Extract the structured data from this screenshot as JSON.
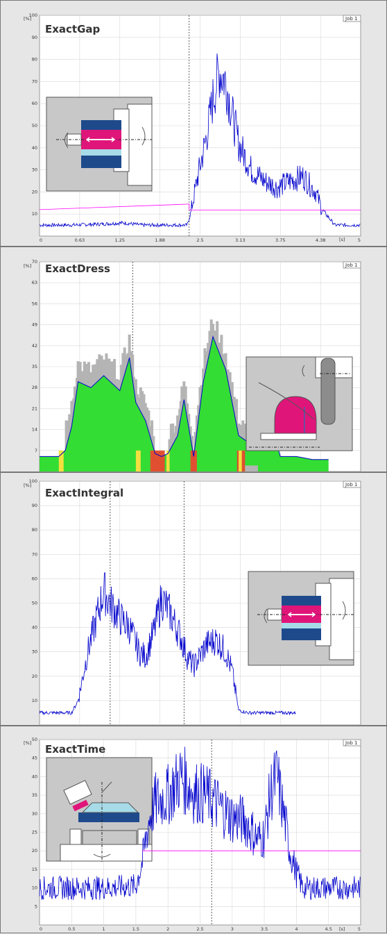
{
  "charts": {
    "gap": {
      "title": "ExactGap",
      "job": "Job 1",
      "unit_y": "[%]",
      "unit_x": "[s]"
    },
    "dress": {
      "title": "ExactDress",
      "job": "Job 1",
      "unit_y": "[%]"
    },
    "integral": {
      "title": "ExactIntegral",
      "job": "Job 1",
      "unit_y": "[%]"
    },
    "time": {
      "title": "ExactTime",
      "job": "Job 1",
      "unit_y": "[%]",
      "unit_x": "[s]"
    }
  },
  "chart_data": [
    {
      "type": "line",
      "title": "ExactGap",
      "ylabel": "[%]",
      "xlabel": "[s]",
      "xlim": [
        0,
        5
      ],
      "ylim": [
        0,
        100
      ],
      "yticks": [
        "10",
        "20",
        "30",
        "40",
        "50",
        "60",
        "70",
        "80",
        "90",
        "100"
      ],
      "xticks": [
        "0",
        "0.63",
        "1.25",
        "1.88",
        "2.5",
        "3.13",
        "3.75",
        "4.38",
        "5"
      ],
      "cursor_x": [
        2.33
      ],
      "series": [
        {
          "color": "#0000cc",
          "x": [
            0,
            0.5,
            1.0,
            1.3,
            1.6,
            2.0,
            2.3,
            2.35,
            2.45,
            2.6,
            2.7,
            2.8,
            2.9,
            3.0,
            3.1,
            3.3,
            3.5,
            3.7,
            3.9,
            4.1,
            4.3,
            4.4,
            4.6,
            5.0
          ],
          "y": [
            5,
            5,
            5.5,
            6,
            5,
            5,
            5,
            10,
            25,
            45,
            62,
            75,
            70,
            55,
            42,
            30,
            25,
            22,
            25,
            27,
            20,
            12,
            5,
            5
          ]
        },
        {
          "color": "#ff00ff",
          "x": [
            0,
            2.33,
            2.33,
            5
          ],
          "y": [
            12,
            14.5,
            11.8,
            11.8
          ]
        }
      ]
    },
    {
      "type": "area",
      "title": "ExactDress",
      "ylabel": "[%]",
      "ylim": [
        0,
        70
      ],
      "yticks": [
        "7",
        "14",
        "21",
        "28",
        "35",
        "42",
        "49",
        "56",
        "63",
        "70"
      ],
      "cursor_x": [
        0.29
      ],
      "series": [
        {
          "color": "#00cc00",
          "x": [
            0,
            0.06,
            0.08,
            0.1,
            0.12,
            0.16,
            0.2,
            0.25,
            0.28,
            0.3,
            0.33,
            0.36,
            0.38,
            0.4,
            0.43,
            0.45,
            0.48,
            0.51,
            0.54,
            0.58,
            0.62,
            0.66,
            0.7,
            0.75,
            0.8,
            0.85,
            0.9
          ],
          "y": [
            5,
            5,
            7,
            15,
            30,
            28,
            32,
            27,
            38,
            23,
            17,
            6,
            5,
            6,
            12,
            24,
            5,
            30,
            45,
            34,
            12,
            9,
            24,
            5,
            5,
            4,
            4
          ]
        },
        {
          "color": "#0000cc",
          "x": [
            0,
            0.06,
            0.08,
            0.1,
            0.12,
            0.16,
            0.2,
            0.25,
            0.28,
            0.3,
            0.33,
            0.36,
            0.38,
            0.4,
            0.43,
            0.45,
            0.48,
            0.51,
            0.54,
            0.58,
            0.62,
            0.66,
            0.7,
            0.75,
            0.8,
            0.85,
            0.9
          ],
          "y": [
            5,
            5,
            7,
            15,
            30,
            28,
            32,
            27,
            38,
            23,
            17,
            6,
            5,
            6,
            12,
            24,
            5,
            30,
            45,
            34,
            12,
            9,
            24,
            5,
            5,
            4,
            4
          ]
        }
      ]
    },
    {
      "type": "line",
      "title": "ExactIntegral",
      "ylabel": "[%]",
      "ylim": [
        0,
        100
      ],
      "yticks": [
        "10",
        "20",
        "30",
        "40",
        "50",
        "60",
        "70",
        "80",
        "90",
        "100"
      ],
      "cursor_x": [
        0.22,
        0.45
      ],
      "series": [
        {
          "color": "#0000cc",
          "x": [
            0,
            0.1,
            0.12,
            0.15,
            0.18,
            0.2,
            0.22,
            0.25,
            0.28,
            0.31,
            0.33,
            0.36,
            0.38,
            0.41,
            0.44,
            0.46,
            0.48,
            0.52,
            0.55,
            0.58,
            0.6,
            0.62,
            0.65,
            0.7,
            0.8
          ],
          "y": [
            5,
            5,
            10,
            30,
            45,
            55,
            50,
            44,
            40,
            30,
            28,
            40,
            52,
            45,
            36,
            28,
            24,
            33,
            35,
            30,
            22,
            6,
            5,
            5,
            5
          ]
        }
      ]
    },
    {
      "type": "line",
      "title": "ExactTime",
      "ylabel": "[%]",
      "xlabel": "[s]",
      "xlim": [
        0,
        5
      ],
      "ylim": [
        0,
        50
      ],
      "yticks": [
        "5",
        "10",
        "15",
        "20",
        "25",
        "30",
        "35",
        "40",
        "45",
        "50"
      ],
      "xticks": [
        "0",
        "0.5",
        "1",
        "1.5",
        "2",
        "2.5",
        "3",
        "3.5",
        "4",
        "4.5",
        "5"
      ],
      "cursor_x": [
        2.68
      ],
      "series": [
        {
          "color": "#0000cc",
          "x": [
            0,
            0.5,
            1.0,
            1.5,
            1.6,
            1.7,
            1.8,
            2.0,
            2.2,
            2.4,
            2.6,
            2.8,
            3.0,
            3.2,
            3.4,
            3.5,
            3.6,
            3.7,
            3.8,
            3.9,
            4.0,
            4.1,
            4.5,
            5.0
          ],
          "y": [
            10,
            10,
            10,
            10.5,
            17,
            28,
            33,
            35,
            40,
            36,
            35,
            32,
            29,
            28,
            23,
            24,
            36,
            40,
            30,
            20,
            14,
            10,
            10,
            10
          ]
        },
        {
          "color": "#ff00ff",
          "x": [
            1.6,
            5
          ],
          "y": [
            20,
            20
          ]
        }
      ]
    }
  ]
}
